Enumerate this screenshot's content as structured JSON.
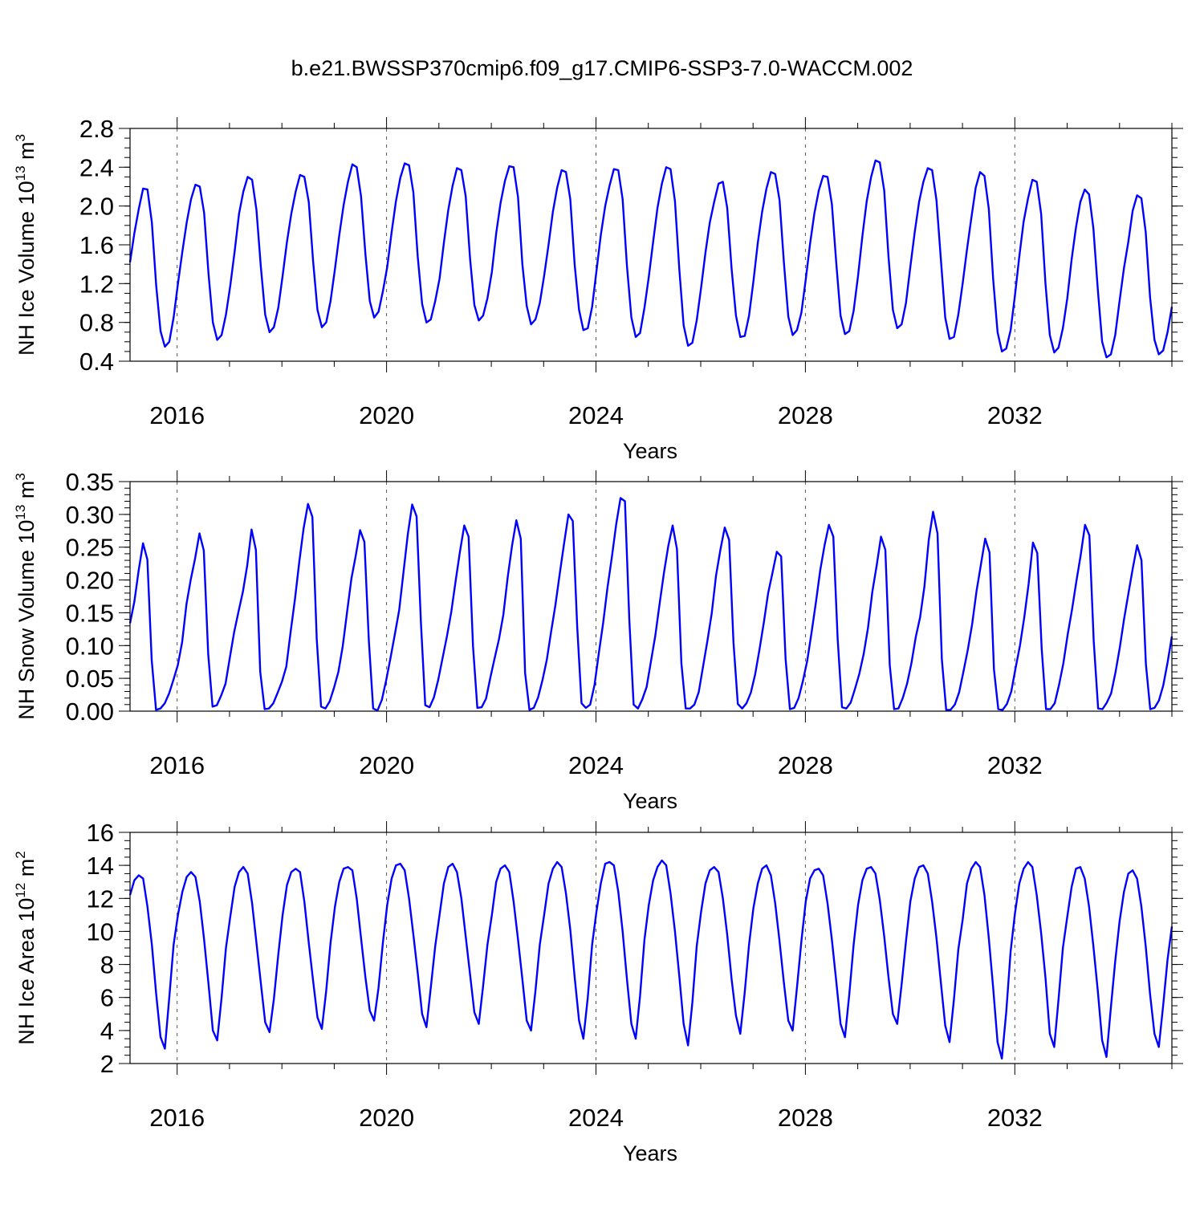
{
  "title": "b.e21.BWSSP370cmip6.f09_g17.CMIP6-SSP3-7.0-WACCM.002",
  "line_color": "#0000ff",
  "chart_data": [
    {
      "type": "line",
      "xlabel": "Years",
      "ylabel": "NH Ice Volume 10^13 m^3",
      "ylabel_parts": [
        "NH Ice Volume 10",
        "13",
        " m",
        "3"
      ],
      "xlim": [
        2015.1,
        2035.0
      ],
      "ylim": [
        0.4,
        2.8
      ],
      "x_ticks": [
        2016,
        2020,
        2024,
        2028,
        2032
      ],
      "y_ticks": [
        "0.4",
        "0.8",
        "1.2",
        "1.6",
        "2.0",
        "2.4",
        "2.8"
      ],
      "y_minor_step": 0.1,
      "grid": "dashed vertical lines at major x ticks",
      "series": [
        {
          "values": [
            1.42,
            1.72,
            1.97,
            2.18,
            2.17,
            1.83,
            1.18,
            0.71,
            0.55,
            0.6,
            0.85,
            1.2,
            1.53,
            1.83,
            2.07,
            2.22,
            2.2,
            1.93,
            1.3,
            0.8,
            0.62,
            0.67,
            0.88,
            1.18,
            1.53,
            1.92,
            2.15,
            2.3,
            2.27,
            1.96,
            1.38,
            0.88,
            0.7,
            0.75,
            0.95,
            1.28,
            1.63,
            1.92,
            2.15,
            2.32,
            2.3,
            2.04,
            1.43,
            0.93,
            0.75,
            0.8,
            1.02,
            1.35,
            1.7,
            2.01,
            2.25,
            2.43,
            2.4,
            2.1,
            1.5,
            1.02,
            0.85,
            0.91,
            1.12,
            1.37,
            1.73,
            2.05,
            2.29,
            2.44,
            2.42,
            2.14,
            1.48,
            0.99,
            0.8,
            0.83,
            1.02,
            1.25,
            1.62,
            1.96,
            2.21,
            2.39,
            2.37,
            2.1,
            1.46,
            0.98,
            0.82,
            0.87,
            1.05,
            1.32,
            1.72,
            2.03,
            2.26,
            2.41,
            2.4,
            2.09,
            1.4,
            0.97,
            0.78,
            0.83,
            1.0,
            1.28,
            1.6,
            1.94,
            2.19,
            2.37,
            2.35,
            2.07,
            1.39,
            0.93,
            0.72,
            0.74,
            0.96,
            1.33,
            1.7,
            2.0,
            2.21,
            2.38,
            2.37,
            2.07,
            1.38,
            0.85,
            0.65,
            0.69,
            0.95,
            1.27,
            1.63,
            1.98,
            2.23,
            2.4,
            2.38,
            2.05,
            1.35,
            0.77,
            0.56,
            0.59,
            0.82,
            1.16,
            1.52,
            1.83,
            2.04,
            2.23,
            2.25,
            1.98,
            1.35,
            0.87,
            0.65,
            0.66,
            0.87,
            1.22,
            1.62,
            1.94,
            2.18,
            2.35,
            2.33,
            2.06,
            1.42,
            0.86,
            0.67,
            0.72,
            0.9,
            1.24,
            1.61,
            1.93,
            2.16,
            2.31,
            2.3,
            2.02,
            1.42,
            0.87,
            0.68,
            0.71,
            0.92,
            1.28,
            1.69,
            2.05,
            2.3,
            2.47,
            2.45,
            2.16,
            1.47,
            0.93,
            0.74,
            0.78,
            1.0,
            1.37,
            1.73,
            2.04,
            2.25,
            2.39,
            2.37,
            2.06,
            1.45,
            0.85,
            0.63,
            0.65,
            0.88,
            1.2,
            1.55,
            1.88,
            2.19,
            2.35,
            2.31,
            1.97,
            1.25,
            0.7,
            0.5,
            0.53,
            0.72,
            1.08,
            1.48,
            1.84,
            2.08,
            2.27,
            2.25,
            1.92,
            1.2,
            0.67,
            0.49,
            0.54,
            0.74,
            1.05,
            1.45,
            1.78,
            2.04,
            2.17,
            2.12,
            1.77,
            1.14,
            0.6,
            0.44,
            0.47,
            0.67,
            1.02,
            1.36,
            1.63,
            1.95,
            2.11,
            2.08,
            1.73,
            1.06,
            0.62,
            0.47,
            0.51,
            0.7,
            0.96
          ]
        }
      ]
    },
    {
      "type": "line",
      "xlabel": "Years",
      "ylabel": "NH Snow Volume 10^13 m^3",
      "ylabel_parts": [
        "NH Snow Volume 10",
        "13",
        " m",
        "3"
      ],
      "xlim": [
        2015.1,
        2035.0
      ],
      "ylim": [
        0.0,
        0.35
      ],
      "x_ticks": [
        2016,
        2020,
        2024,
        2028,
        2032
      ],
      "y_ticks": [
        "0.00",
        "0.05",
        "0.10",
        "0.15",
        "0.20",
        "0.25",
        "0.30",
        "0.35"
      ],
      "y_minor_step": 0.01,
      "grid": "dashed vertical lines at major x ticks",
      "series": [
        {
          "values": [
            0.134,
            0.167,
            0.215,
            0.256,
            0.231,
            0.078,
            0.002,
            0.004,
            0.012,
            0.027,
            0.048,
            0.07,
            0.105,
            0.163,
            0.201,
            0.233,
            0.271,
            0.245,
            0.087,
            0.007,
            0.009,
            0.024,
            0.042,
            0.082,
            0.121,
            0.152,
            0.182,
            0.222,
            0.277,
            0.246,
            0.06,
            0.003,
            0.004,
            0.012,
            0.028,
            0.045,
            0.068,
            0.121,
            0.171,
            0.228,
            0.279,
            0.316,
            0.296,
            0.11,
            0.007,
            0.004,
            0.015,
            0.036,
            0.06,
            0.099,
            0.151,
            0.202,
            0.237,
            0.276,
            0.258,
            0.108,
            0.004,
            0.001,
            0.017,
            0.047,
            0.081,
            0.117,
            0.154,
            0.212,
            0.27,
            0.315,
            0.297,
            0.135,
            0.009,
            0.006,
            0.021,
            0.048,
            0.081,
            0.114,
            0.151,
            0.198,
            0.243,
            0.283,
            0.266,
            0.099,
            0.005,
            0.006,
            0.019,
            0.051,
            0.081,
            0.11,
            0.147,
            0.204,
            0.252,
            0.291,
            0.263,
            0.058,
            0.002,
            0.005,
            0.021,
            0.047,
            0.078,
            0.121,
            0.162,
            0.21,
            0.256,
            0.3,
            0.29,
            0.129,
            0.012,
            0.005,
            0.01,
            0.04,
            0.089,
            0.135,
            0.189,
            0.235,
            0.285,
            0.325,
            0.32,
            0.14,
            0.01,
            0.004,
            0.018,
            0.037,
            0.076,
            0.115,
            0.164,
            0.211,
            0.252,
            0.283,
            0.247,
            0.073,
            0.004,
            0.004,
            0.01,
            0.029,
            0.068,
            0.107,
            0.149,
            0.207,
            0.246,
            0.28,
            0.261,
            0.105,
            0.011,
            0.004,
            0.012,
            0.028,
            0.056,
            0.094,
            0.135,
            0.18,
            0.211,
            0.243,
            0.236,
            0.08,
            0.003,
            0.005,
            0.02,
            0.046,
            0.077,
            0.12,
            0.166,
            0.215,
            0.253,
            0.284,
            0.266,
            0.11,
            0.006,
            0.004,
            0.013,
            0.034,
            0.057,
            0.087,
            0.127,
            0.182,
            0.222,
            0.266,
            0.246,
            0.07,
            0.003,
            0.004,
            0.02,
            0.042,
            0.073,
            0.113,
            0.143,
            0.19,
            0.261,
            0.304,
            0.271,
            0.079,
            0.002,
            0.002,
            0.01,
            0.029,
            0.061,
            0.094,
            0.133,
            0.183,
            0.223,
            0.263,
            0.242,
            0.064,
            0.003,
            0.002,
            0.011,
            0.03,
            0.066,
            0.1,
            0.143,
            0.194,
            0.257,
            0.241,
            0.095,
            0.003,
            0.003,
            0.012,
            0.04,
            0.073,
            0.117,
            0.155,
            0.198,
            0.238,
            0.284,
            0.268,
            0.107,
            0.004,
            0.003,
            0.013,
            0.027,
            0.059,
            0.097,
            0.141,
            0.18,
            0.218,
            0.253,
            0.23,
            0.072,
            0.003,
            0.005,
            0.016,
            0.039,
            0.074,
            0.114
          ]
        }
      ]
    },
    {
      "type": "line",
      "xlabel": "Years",
      "ylabel": "NH Ice Area 10^12 m^2",
      "ylabel_parts": [
        "NH Ice Area 10",
        "12",
        " m",
        "2"
      ],
      "xlim": [
        2015.1,
        2035.0
      ],
      "ylim": [
        2,
        16
      ],
      "x_ticks": [
        2016,
        2020,
        2024,
        2028,
        2032
      ],
      "y_ticks": [
        "2",
        "4",
        "6",
        "8",
        "10",
        "12",
        "14",
        "16"
      ],
      "y_minor_step": 0.5,
      "grid": "dashed vertical lines at major x ticks",
      "series": [
        {
          "values": [
            12.2,
            13.1,
            13.4,
            13.2,
            11.5,
            9.2,
            6.2,
            3.6,
            2.9,
            6.0,
            9.2,
            11.0,
            12.4,
            13.3,
            13.6,
            13.3,
            11.8,
            9.5,
            6.8,
            4.0,
            3.4,
            6.0,
            9.0,
            10.9,
            12.7,
            13.6,
            13.9,
            13.5,
            11.7,
            9.3,
            6.9,
            4.5,
            3.9,
            5.9,
            8.6,
            11.0,
            12.8,
            13.6,
            13.8,
            13.6,
            11.8,
            9.3,
            7.0,
            4.8,
            4.1,
            6.4,
            9.3,
            11.5,
            13.0,
            13.8,
            13.9,
            13.7,
            12.0,
            9.6,
            7.2,
            5.2,
            4.6,
            6.6,
            9.3,
            11.6,
            13.2,
            14.0,
            14.1,
            13.7,
            12.0,
            9.8,
            7.5,
            5.0,
            4.2,
            6.6,
            9.1,
            11.0,
            12.9,
            13.9,
            14.1,
            13.6,
            12.0,
            9.7,
            7.4,
            5.1,
            4.4,
            6.7,
            9.2,
            11.0,
            13.0,
            13.8,
            14.0,
            13.6,
            11.8,
            9.5,
            7.1,
            4.6,
            4.0,
            6.4,
            9.2,
            11.0,
            12.9,
            13.8,
            14.2,
            13.9,
            12.3,
            10.1,
            7.2,
            4.6,
            3.5,
            6.0,
            9.2,
            11.2,
            12.9,
            14.1,
            14.2,
            14.0,
            12.4,
            10.0,
            7.1,
            4.4,
            3.5,
            6.1,
            9.5,
            11.6,
            13.1,
            13.9,
            14.3,
            14.0,
            12.3,
            10.0,
            7.3,
            4.4,
            3.1,
            5.7,
            9.1,
            11.2,
            12.9,
            13.7,
            13.9,
            13.6,
            12.0,
            9.8,
            7.1,
            4.9,
            3.8,
            6.3,
            9.2,
            11.4,
            12.9,
            13.8,
            14.0,
            13.4,
            11.7,
            9.4,
            6.9,
            4.6,
            4.0,
            6.6,
            9.4,
            11.8,
            13.2,
            13.7,
            13.8,
            13.4,
            11.7,
            9.5,
            7.0,
            4.4,
            3.6,
            6.2,
            9.2,
            11.6,
            13.1,
            13.8,
            13.9,
            13.5,
            11.9,
            9.7,
            7.2,
            5.0,
            4.4,
            6.8,
            9.4,
            11.8,
            13.2,
            13.9,
            14.0,
            13.5,
            11.8,
            9.6,
            6.9,
            4.3,
            3.3,
            5.9,
            8.9,
            10.7,
            12.9,
            13.8,
            14.2,
            13.9,
            12.2,
            9.6,
            6.6,
            3.3,
            2.3,
            5.1,
            8.8,
            11.1,
            12.9,
            13.8,
            14.2,
            13.9,
            12.2,
            9.9,
            7.2,
            3.8,
            3.0,
            5.9,
            9.0,
            10.9,
            12.7,
            13.8,
            13.9,
            13.2,
            11.5,
            9.1,
            6.4,
            3.4,
            2.4,
            5.4,
            8.2,
            10.6,
            12.4,
            13.5,
            13.7,
            13.2,
            11.5,
            9.1,
            6.2,
            3.8,
            3.0,
            5.5,
            8.3,
            10.3
          ]
        }
      ]
    }
  ]
}
